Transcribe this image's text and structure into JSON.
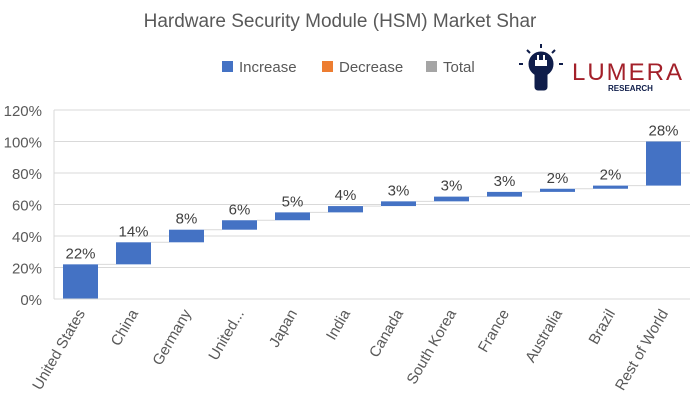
{
  "chart_data": {
    "type": "waterfall",
    "title": "Hardware Security Module (HSM) Market Shar",
    "categories": [
      "United States",
      "China",
      "Germany",
      "United...",
      "Japan",
      "India",
      "Canada",
      "South Korea",
      "France",
      "Australia",
      "Brazil",
      "Rest of World"
    ],
    "values": [
      22,
      14,
      8,
      6,
      5,
      4,
      3,
      3,
      3,
      2,
      2,
      28
    ],
    "data_labels": [
      "22%",
      "14%",
      "8%",
      "6%",
      "5%",
      "4%",
      "3%",
      "3%",
      "3%",
      "2%",
      "2%",
      "28%"
    ],
    "ylim": [
      0,
      120
    ],
    "yticks": [
      "0%",
      "20%",
      "40%",
      "60%",
      "80%",
      "100%",
      "120%"
    ],
    "ytick_values": [
      0,
      20,
      40,
      60,
      80,
      100,
      120
    ],
    "grid": true,
    "legend": {
      "placement": "top",
      "entries": [
        {
          "label": "Increase",
          "color": "#4472C4"
        },
        {
          "label": "Decrease",
          "color": "#ED7D31"
        },
        {
          "label": "Total",
          "color": "#A5A5A5"
        }
      ]
    }
  },
  "logo": {
    "name": "LUMERA",
    "sub": "RESEARCH",
    "color": "#A3202A",
    "icon_color": "#0F1D4A"
  }
}
